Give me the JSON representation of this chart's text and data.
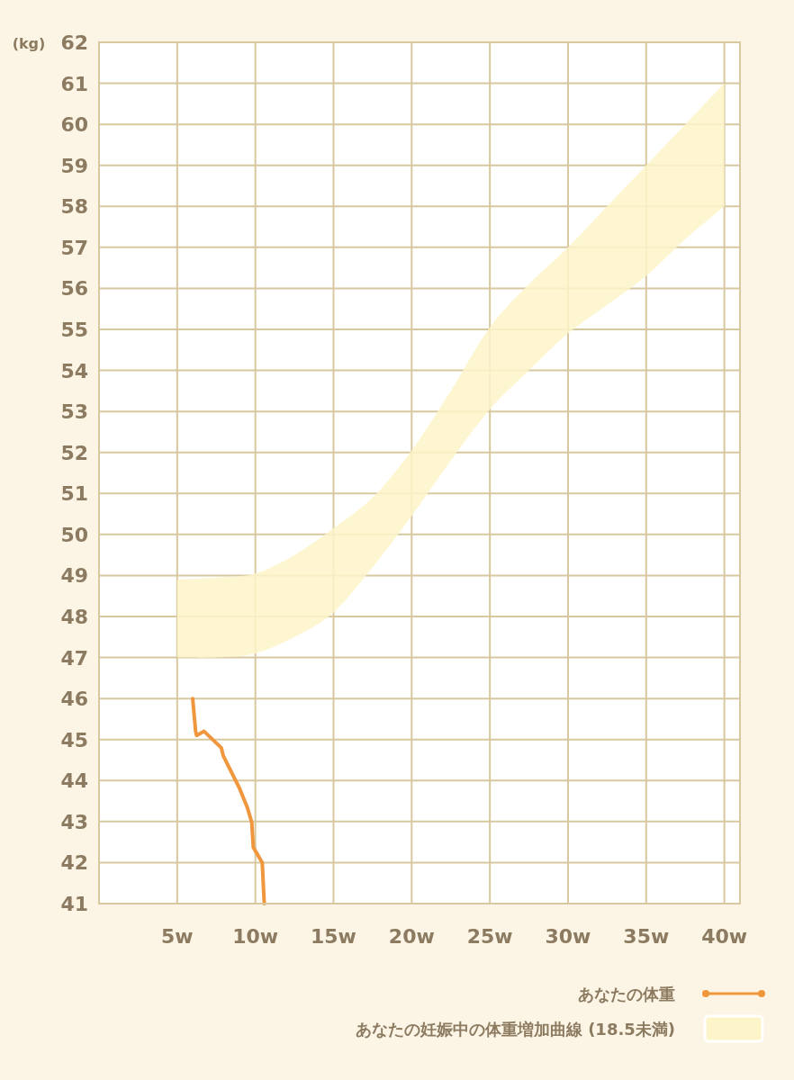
{
  "chart_data": {
    "type": "line",
    "ylabel": "(kg)",
    "xlim": [
      0,
      41
    ],
    "ylim": [
      41,
      62
    ],
    "xticks": [
      {
        "value": 5,
        "label": "5w"
      },
      {
        "value": 10,
        "label": "10w"
      },
      {
        "value": 15,
        "label": "15w"
      },
      {
        "value": 20,
        "label": "20w"
      },
      {
        "value": 25,
        "label": "25w"
      },
      {
        "value": 30,
        "label": "30w"
      },
      {
        "value": 35,
        "label": "35w"
      },
      {
        "value": 40,
        "label": "40w"
      }
    ],
    "yticks": [
      41,
      42,
      43,
      44,
      45,
      46,
      47,
      48,
      49,
      50,
      51,
      52,
      53,
      54,
      55,
      56,
      57,
      58,
      59,
      60,
      61,
      62
    ],
    "grid": true,
    "legend": "bottom right",
    "series": [
      {
        "name": "あなたの体重",
        "color": "#f0963c",
        "x": [
          5.99,
          6.18,
          6.24,
          6.72,
          7.82,
          7.95,
          9.0,
          9.48,
          9.77,
          9.87,
          10.44,
          10.57
        ],
        "values": [
          46,
          45.2,
          45.1,
          45.2,
          44.8,
          44.6,
          43.8,
          43.35,
          42.98,
          42.37,
          42,
          41
        ]
      },
      {
        "name": "あなたの妊娠中の体重増加曲線 (18.5未満)",
        "type": "area",
        "color": "#fdf5c9",
        "x": [
          5,
          7.5,
          10,
          12.5,
          15,
          17.5,
          20,
          22.5,
          25,
          27.5,
          30,
          32.5,
          35,
          37.5,
          40
        ],
        "values": [
          null,
          null,
          null,
          null,
          null,
          null,
          null,
          null,
          null,
          null,
          null,
          null,
          null,
          null,
          null
        ],
        "lower": [
          47,
          47,
          47.1,
          47.5,
          48.1,
          49.2,
          50.45,
          51.8,
          53.05,
          54,
          54.9,
          55.6,
          56.3,
          57.2,
          58
        ],
        "upper": [
          48.9,
          48.95,
          49.05,
          49.5,
          50.15,
          50.9,
          52.05,
          53.5,
          55.05,
          56.1,
          57,
          58,
          59,
          60,
          61
        ]
      }
    ]
  }
}
